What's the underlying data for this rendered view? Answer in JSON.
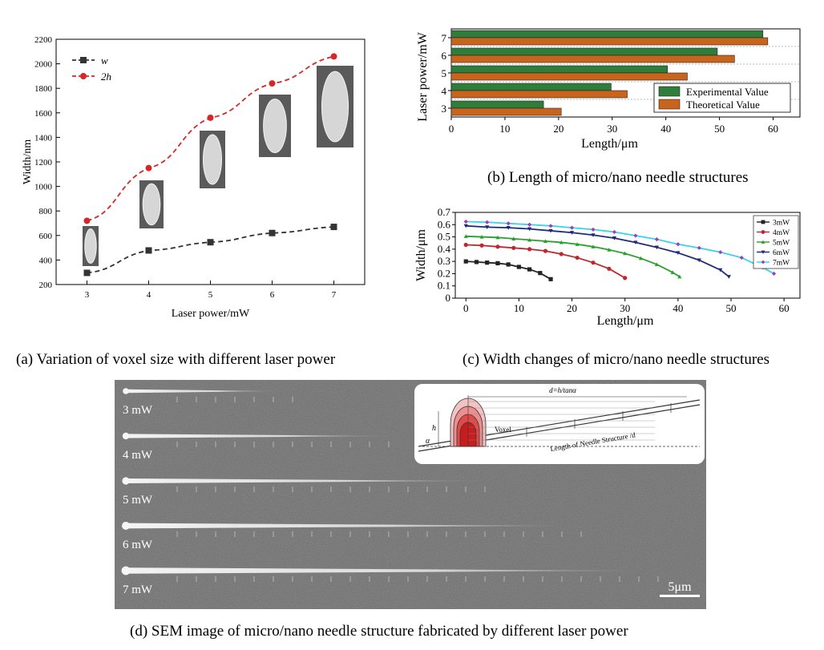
{
  "captions": {
    "a": "(a) Variation of voxel size with different laser power",
    "b": "(b) Length of micro/nano needle structures",
    "c": "(c) Width changes of micro/nano needle structures",
    "d": "(d) SEM image of micro/nano needle structure fabricated by different laser power"
  },
  "chart_data": [
    {
      "id": "a",
      "type": "scatter",
      "xlabel": "Laser power/mW",
      "ylabel": "Width/nm",
      "xlim": [
        2.5,
        7.5
      ],
      "ylim": [
        200,
        2200
      ],
      "xticks": [
        3,
        4,
        5,
        6,
        7
      ],
      "yticks": [
        200,
        400,
        600,
        800,
        1000,
        1200,
        1400,
        1600,
        1800,
        2000,
        2200
      ],
      "legend_position": "top-left",
      "series": [
        {
          "name": "w",
          "color": "#333333",
          "marker": "square",
          "x": [
            3,
            4,
            5,
            6,
            7
          ],
          "y": [
            295,
            478,
            545,
            620,
            670
          ]
        },
        {
          "name": "2h",
          "color": "#d62728",
          "marker": "circle",
          "x": [
            3,
            4,
            5,
            6,
            7
          ],
          "y": [
            720,
            1150,
            1560,
            1840,
            2060
          ]
        }
      ]
    },
    {
      "id": "b",
      "type": "bar",
      "orientation": "horizontal",
      "xlabel": "Length/μm",
      "ylabel": "Laser power/mW",
      "xlim": [
        0,
        65
      ],
      "xticks": [
        0,
        10,
        20,
        30,
        40,
        50,
        60
      ],
      "categories": [
        "3",
        "4",
        "5",
        "6",
        "7"
      ],
      "legend_position": "bottom-right",
      "series": [
        {
          "name": "Experimental Value",
          "color": "#2e7d3a",
          "values": [
            17.2,
            29.8,
            40.3,
            49.6,
            58.1
          ]
        },
        {
          "name": "Theoretical Value",
          "color": "#c8641c",
          "values": [
            20.5,
            32.8,
            44,
            52.8,
            59
          ]
        }
      ]
    },
    {
      "id": "c",
      "type": "line",
      "xlabel": "Length/μm",
      "ylabel": "Width/μm",
      "xlim": [
        -2,
        63
      ],
      "ylim": [
        0,
        0.7
      ],
      "xticks": [
        0,
        10,
        20,
        30,
        40,
        50,
        60
      ],
      "yticks": [
        0,
        0.1,
        0.2,
        0.3,
        0.4,
        0.5,
        0.6,
        0.7
      ],
      "legend_position": "top-right",
      "series": [
        {
          "name": "3mW",
          "color": "#222222",
          "marker": "square",
          "x": [
            0,
            2,
            4,
            6,
            8,
            10,
            12,
            14,
            16
          ],
          "y": [
            0.3,
            0.295,
            0.29,
            0.285,
            0.275,
            0.255,
            0.235,
            0.205,
            0.155
          ]
        },
        {
          "name": "4mW",
          "color": "#c0262d",
          "marker": "circle",
          "x": [
            0,
            3,
            6,
            9,
            12,
            15,
            18,
            21,
            24,
            27,
            30
          ],
          "y": [
            0.435,
            0.43,
            0.42,
            0.41,
            0.4,
            0.385,
            0.36,
            0.33,
            0.29,
            0.24,
            0.165
          ]
        },
        {
          "name": "5mW",
          "color": "#2ca02c",
          "marker": "triangle",
          "x": [
            0,
            3,
            6,
            9,
            12,
            15,
            18,
            21,
            24,
            27,
            30,
            33,
            36,
            39,
            40.3
          ],
          "y": [
            0.505,
            0.5,
            0.495,
            0.485,
            0.475,
            0.465,
            0.455,
            0.44,
            0.42,
            0.395,
            0.365,
            0.325,
            0.275,
            0.21,
            0.175
          ]
        },
        {
          "name": "6mW",
          "color": "#1f2a7a",
          "marker": "triangle-down",
          "x": [
            0,
            4,
            8,
            12,
            16,
            20,
            24,
            28,
            32,
            36,
            40,
            44,
            48,
            49.6
          ],
          "y": [
            0.59,
            0.58,
            0.575,
            0.565,
            0.55,
            0.535,
            0.515,
            0.49,
            0.455,
            0.415,
            0.37,
            0.31,
            0.23,
            0.175
          ]
        },
        {
          "name": "7mW",
          "color": "#9b3fc4",
          "line_color": "#35d4e6",
          "marker": "diamond",
          "x": [
            0,
            4,
            8,
            12,
            16,
            20,
            24,
            28,
            32,
            36,
            40,
            44,
            48,
            52,
            56,
            58.1
          ],
          "y": [
            0.625,
            0.62,
            0.61,
            0.6,
            0.59,
            0.575,
            0.56,
            0.54,
            0.51,
            0.48,
            0.44,
            0.41,
            0.375,
            0.33,
            0.25,
            0.2
          ]
        }
      ]
    }
  ],
  "sem": {
    "labels": [
      "3 mW",
      "4 mW",
      "5 mW",
      "6 mW",
      "7 mW"
    ],
    "needle_lengths": [
      17.2,
      29.8,
      40.3,
      49.6,
      58.1
    ],
    "scale_bar": "5μm",
    "inset": {
      "formula": "d=h/tanα",
      "h_label": "h",
      "alpha_label": "α",
      "voxel_label": "Voxel",
      "needle_label": "Length of Needle Structure /d"
    }
  }
}
